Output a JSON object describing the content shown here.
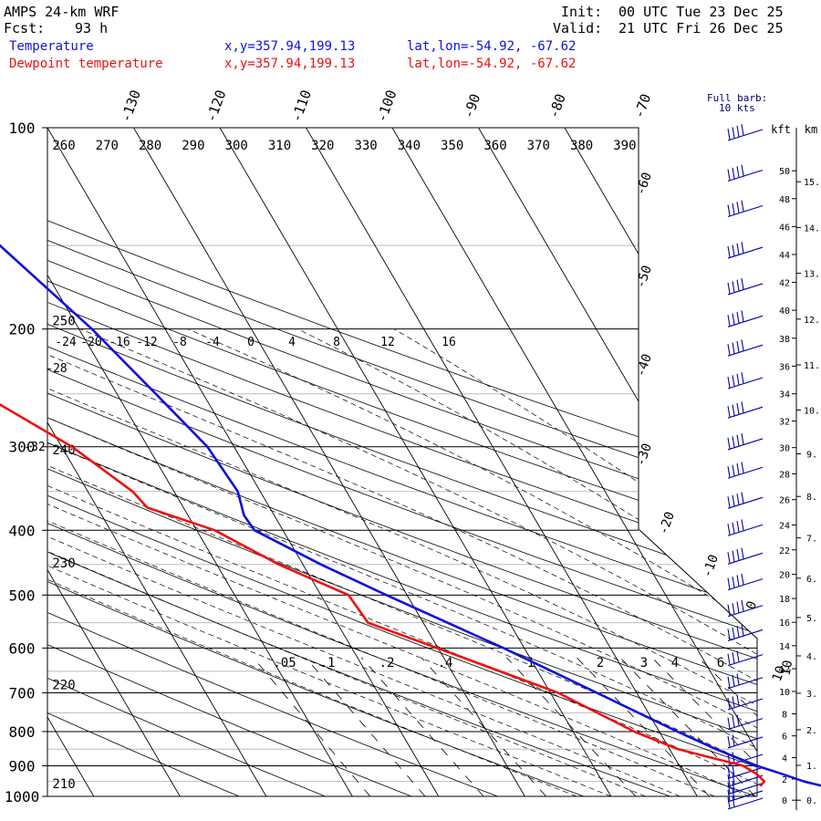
{
  "header": {
    "model": "AMPS 24-km WRF",
    "fcst_label": "Fcst:",
    "fcst_value": "93 h",
    "init_label": "Init:",
    "init_value": "00 UTC Tue 23 Dec 25",
    "valid_label": "Valid:",
    "valid_value": "21 UTC Fri 26 Dec 25"
  },
  "legend": [
    {
      "name": "Temperature",
      "xy": "x,y=357.94,199.13",
      "latlon": "lat,lon=-54.92, -67.62",
      "color": "#1010dd"
    },
    {
      "name": "Dewpoint temperature",
      "xy": "x,y=357.94,199.13",
      "latlon": "lat,lon=-54.92, -67.62",
      "color": "#ee1111"
    }
  ],
  "wind_note": {
    "line1": "Full barb:",
    "line2": "10 kts"
  },
  "axes": {
    "left_unit": "",
    "kft_label": "kft",
    "km_label": "km"
  },
  "chart_data": {
    "type": "line",
    "title": "AMPS 24-km WRF",
    "pressure_ticks": [
      100,
      200,
      300,
      400,
      500,
      600,
      700,
      800,
      900,
      1000
    ],
    "isotherm_top_labels": [
      -130,
      -120,
      -110,
      -100,
      -90,
      -80,
      -70
    ],
    "isotherm_right_labels": [
      -60,
      -50,
      -40,
      -30,
      -20,
      -10,
      0,
      10
    ],
    "theta_labels": [
      260,
      270,
      280,
      290,
      300,
      310,
      320,
      330,
      340,
      350,
      360,
      370,
      380,
      390
    ],
    "theta_labels_left": [
      {
        "p": 200,
        "label": "250"
      },
      {
        "p": 312,
        "label": "240"
      },
      {
        "p": 460,
        "label": "230"
      },
      {
        "p": 700,
        "label": "220"
      },
      {
        "p": 985,
        "label": "210"
      }
    ],
    "thetae_labels": [
      "-24",
      "-20",
      "-16",
      "-12",
      "-8",
      "-4",
      "0",
      "4",
      "8",
      "12",
      "16"
    ],
    "thetae_extra": [
      "-28",
      "-32"
    ],
    "mixing_ratio_labels": [
      ".05",
      ".1",
      ".2",
      ".4",
      "1",
      "2",
      "3",
      "4",
      "6",
      "10"
    ],
    "height_kft": [
      0,
      2,
      4,
      6,
      8,
      10,
      12,
      14,
      16,
      18,
      20,
      22,
      24,
      26,
      28,
      30,
      32,
      34,
      36,
      38,
      40,
      42,
      44,
      46,
      48,
      50
    ],
    "height_km": [
      "0.",
      "1.",
      "2.",
      "3.",
      "4.",
      "5.",
      "6.",
      "7.",
      "8.",
      "9.",
      "10.",
      "11.",
      "12.",
      "13.",
      "14.",
      "15."
    ],
    "series": [
      {
        "name": "Temperature",
        "color": "#1010dd",
        "points": [
          {
            "p": 1000,
            "t": 9
          },
          {
            "p": 975,
            "t": 6.5
          },
          {
            "p": 950,
            "t": 3.4
          },
          {
            "p": 925,
            "t": 1.3
          },
          {
            "p": 900,
            "t": -1.0
          },
          {
            "p": 850,
            "t": -4.6
          },
          {
            "p": 800,
            "t": -7.9
          },
          {
            "p": 700,
            "t": -14.6
          },
          {
            "p": 600,
            "t": -22.4
          },
          {
            "p": 500,
            "t": -32.4
          },
          {
            "p": 450,
            "t": -37.9
          },
          {
            "p": 400,
            "t": -43.3
          },
          {
            "p": 380,
            "t": -43.5
          },
          {
            "p": 350,
            "t": -42.6
          },
          {
            "p": 300,
            "t": -43.1
          },
          {
            "p": 250,
            "t": -45.5
          },
          {
            "p": 200,
            "t": -48.5
          },
          {
            "p": 150,
            "t": -53.5
          },
          {
            "p": 100,
            "t": -58.3
          }
        ]
      },
      {
        "name": "Dewpoint temperature",
        "color": "#ee1111",
        "points": [
          {
            "p": 965,
            "t": -2.0
          },
          {
            "p": 950,
            "t": -1.2
          },
          {
            "p": 925,
            "t": -1.6
          },
          {
            "p": 900,
            "t": -2.6
          },
          {
            "p": 850,
            "t": -9.0
          },
          {
            "p": 800,
            "t": -12.9
          },
          {
            "p": 700,
            "t": -19.1
          },
          {
            "p": 600,
            "t": -30.1
          },
          {
            "p": 550,
            "t": -36.4
          },
          {
            "p": 500,
            "t": -36.8
          },
          {
            "p": 450,
            "t": -42.8
          },
          {
            "p": 400,
            "t": -47.9
          },
          {
            "p": 370,
            "t": -54.2
          },
          {
            "p": 350,
            "t": -54.8
          },
          {
            "p": 300,
            "t": -58.8
          },
          {
            "p": 250,
            "t": -65.7
          },
          {
            "p": 200,
            "t": -72.5
          },
          {
            "p": 150,
            "t": -69.5
          },
          {
            "p": 130,
            "t": -70.6
          },
          {
            "p": 100,
            "t": -77.5
          }
        ]
      }
    ],
    "wind_levels_hpa": [
      100,
      115,
      130,
      150,
      170,
      190,
      210,
      235,
      260,
      290,
      320,
      355,
      390,
      430,
      470,
      515,
      560,
      610,
      660,
      710,
      760,
      810,
      860,
      900,
      925,
      950,
      975,
      1000
    ]
  }
}
